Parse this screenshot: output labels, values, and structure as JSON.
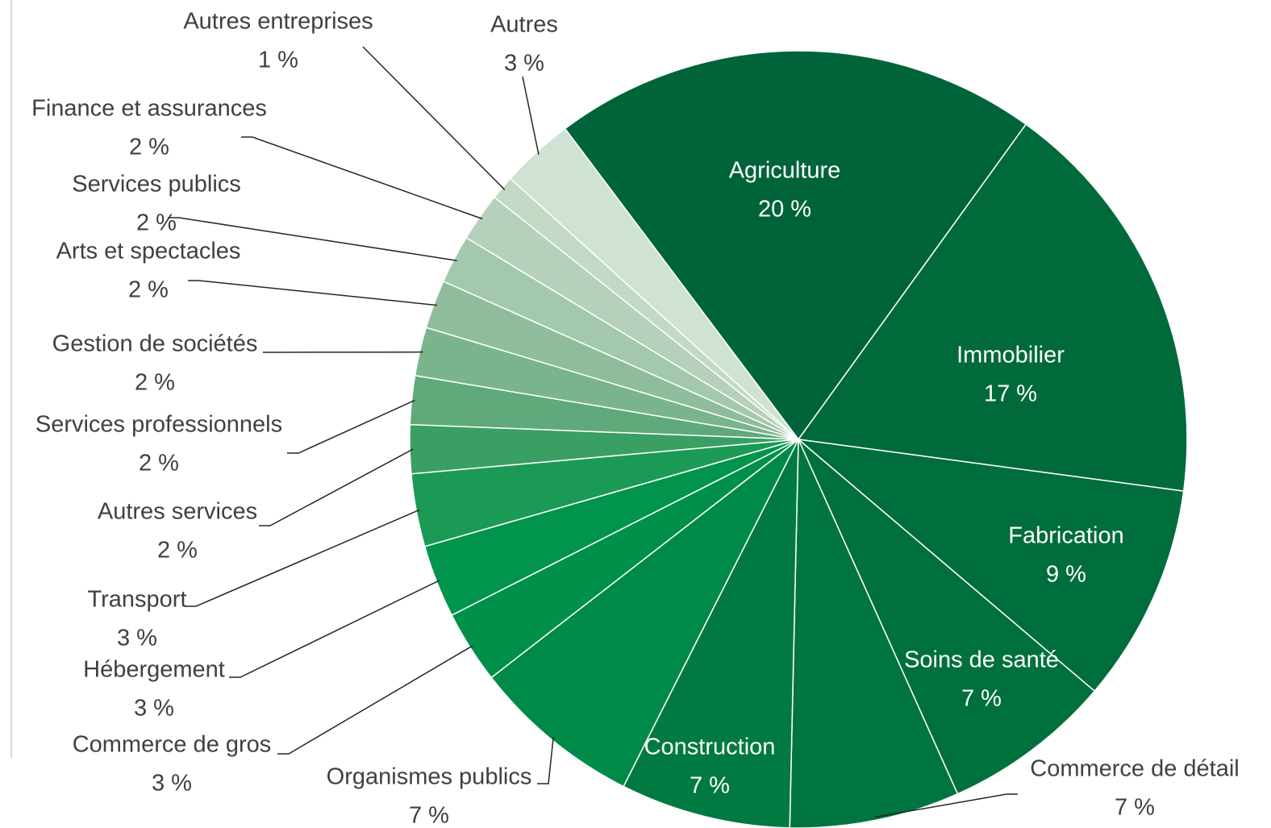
{
  "chart_data": {
    "type": "pie",
    "categories": [
      "Agriculture",
      "Immobilier",
      "Fabrication",
      "Soins de santé",
      "Commerce de détail",
      "Construction",
      "Organismes publics",
      "Commerce de gros",
      "Hébergement",
      "Transport",
      "Autres services",
      "Services professionnels",
      "Gestion de sociétés",
      "Arts et spectacles",
      "Services publics",
      "Finance et assurances",
      "Autres entreprises",
      "Autres"
    ],
    "values": [
      20,
      17,
      9,
      7,
      7,
      7,
      7,
      3,
      3,
      3,
      2,
      2,
      2,
      2,
      2,
      2,
      1,
      3
    ],
    "value_labels": [
      "20 %",
      "17 %",
      "9 %",
      "7 %",
      "7 %",
      "7 %",
      "7 %",
      "3 %",
      "3 %",
      "3 %",
      "2 %",
      "2 %",
      "2 %",
      "2 %",
      "2 %",
      "2 %",
      "1 %",
      "3 %"
    ],
    "colors": [
      "#00643a",
      "#006a3b",
      "#006d3c",
      "#00703d",
      "#00753f",
      "#007a41",
      "#008a47",
      "#00904a",
      "#00944c",
      "#1a9a55",
      "#3a9f63",
      "#5fa97a",
      "#7ab48c",
      "#8fbd9b",
      "#a3c8ac",
      "#b5d1bb",
      "#c2d9c6",
      "#d0e2d3"
    ]
  }
}
